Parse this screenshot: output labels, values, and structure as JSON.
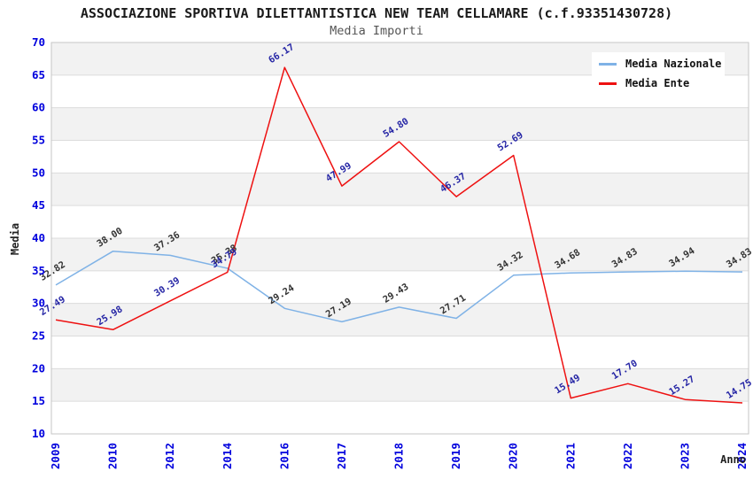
{
  "title": "ASSOCIAZIONE SPORTIVA DILETTANTISTICA NEW TEAM CELLAMARE (c.f.93351430728)",
  "subtitle": "Media Importi",
  "chart_data": {
    "type": "line",
    "categories": [
      "2009",
      "2010",
      "2012",
      "2014",
      "2016",
      "2017",
      "2018",
      "2019",
      "2020",
      "2021",
      "2022",
      "2023",
      "2024"
    ],
    "series": [
      {
        "name": "Media Nazionale",
        "color": "#7fb2e6",
        "label_color": "#333333",
        "values": [
          32.82,
          38.0,
          37.36,
          35.38,
          29.24,
          27.19,
          29.43,
          27.71,
          34.32,
          34.68,
          34.83,
          34.94,
          34.83
        ]
      },
      {
        "name": "Media Ente",
        "color": "#ee1111",
        "label_color": "#2525a5",
        "values": [
          27.49,
          25.98,
          30.39,
          34.79,
          66.17,
          47.99,
          54.8,
          46.37,
          52.69,
          15.49,
          17.7,
          15.27,
          14.75
        ]
      }
    ],
    "xlabel": "Anno",
    "ylabel": "Media",
    "ylim": [
      10,
      70
    ],
    "yticks": [
      10,
      15,
      20,
      25,
      30,
      35,
      40,
      45,
      50,
      55,
      60,
      65,
      70
    ],
    "grid": true,
    "legend_position": "top-right",
    "colors": {
      "tick_label": "#0000dd",
      "band_gray": "#f2f2f2",
      "grid_line": "#dcdcdc",
      "plot_border": "#c6c6c6"
    }
  }
}
